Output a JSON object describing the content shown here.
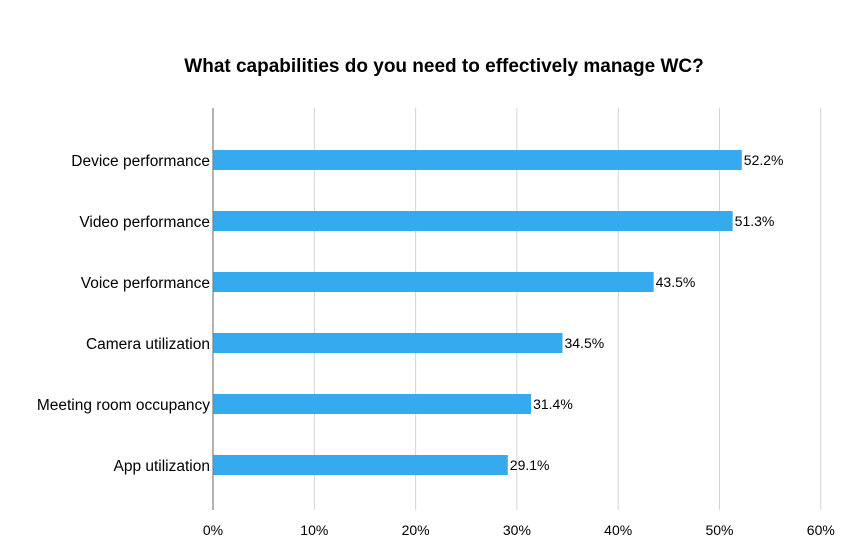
{
  "chart_data": {
    "type": "bar",
    "orientation": "horizontal",
    "title": "What capabilities do you need to effectively manage WC?",
    "categories": [
      "Device performance",
      "Video performance",
      "Voice performance",
      "Camera utilization",
      "Meeting room occupancy",
      "App utilization"
    ],
    "values": [
      52.2,
      51.3,
      43.5,
      34.5,
      31.4,
      29.1
    ],
    "data_labels": [
      "52.2%",
      "51.3%",
      "43.5%",
      "34.5%",
      "31.4%",
      "29.1%"
    ],
    "xlim": [
      0,
      60
    ],
    "x_ticks": [
      0,
      10,
      20,
      30,
      40,
      50,
      60
    ],
    "x_tick_labels": [
      "0%",
      "10%",
      "20%",
      "30%",
      "40%",
      "50%",
      "60%"
    ],
    "xlabel": "",
    "ylabel": "",
    "grid": true,
    "legend": "none",
    "colors": {
      "bar": "#35aaee",
      "grid": "#d3d3d3",
      "axis": "#808080",
      "text": "#000000"
    }
  }
}
